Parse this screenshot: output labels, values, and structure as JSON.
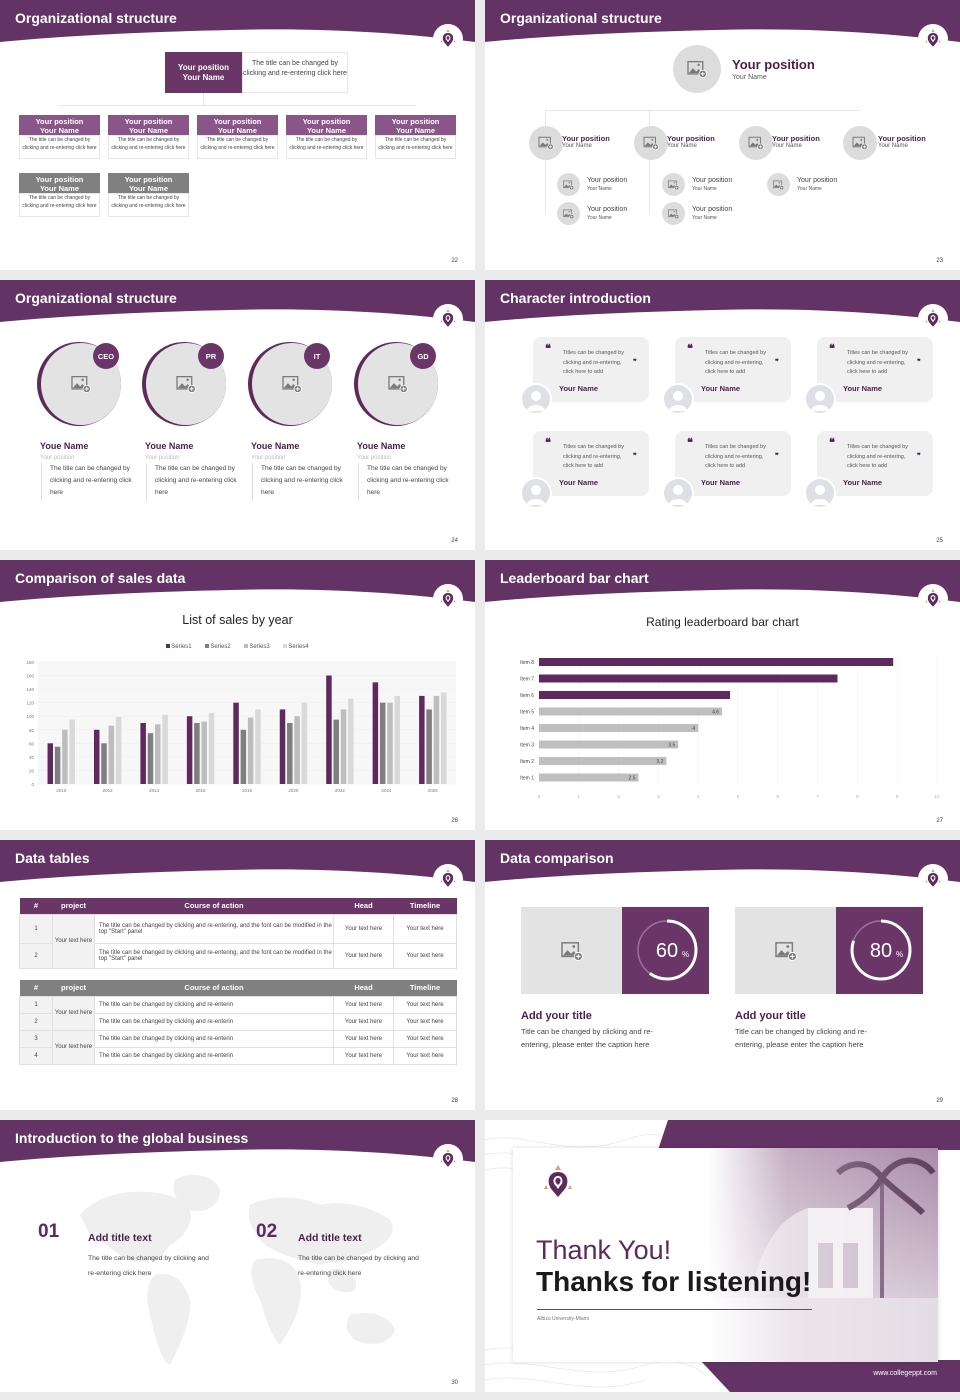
{
  "colors": {
    "brand_purple": "#6a3668",
    "dark_purple": "#4a1f4a",
    "gray": "#808080",
    "light_gray": "#e3e3e3",
    "logo_orange": "#e59a6c"
  },
  "slides": [
    {
      "title": "Organizational structure",
      "page": "22",
      "top": {
        "position": "Your position",
        "name": "Your Name",
        "desc": "The title can be changed by clicking and re-entering click here"
      },
      "cards": [
        {
          "position": "Your position",
          "name": "Your Name",
          "desc": "The title can be changed by clicking and re-entering click here",
          "tone": "purple"
        },
        {
          "position": "Your position",
          "name": "Your Name",
          "desc": "The title can be changed by clicking and re-entering click here",
          "tone": "purple"
        },
        {
          "position": "Your position",
          "name": "Your Name",
          "desc": "The title can be changed by clicking and re-entering click here",
          "tone": "purple"
        },
        {
          "position": "Your position",
          "name": "Your Name",
          "desc": "The title can be changed by clicking and re-entering click here",
          "tone": "purple"
        },
        {
          "position": "Your position",
          "name": "Your Name",
          "desc": "The title can be changed by clicking and re-entering click here",
          "tone": "purple"
        },
        {
          "position": "Your position",
          "name": "Your Name",
          "desc": "The title can be changed by clicking and re-entering click here",
          "tone": "gray"
        },
        {
          "position": "Your position",
          "name": "Your Name",
          "desc": "The title can be changed by clicking and re-entering click here",
          "tone": "gray"
        }
      ]
    },
    {
      "title": "Organizational structure",
      "page": "23",
      "top": {
        "position": "Your position",
        "name": "Your Name"
      },
      "level2": [
        {
          "position": "Your position",
          "name": "Your Name"
        },
        {
          "position": "Your position",
          "name": "Your Name"
        },
        {
          "position": "Your position",
          "name": "Your Name"
        },
        {
          "position": "Your position",
          "name": "Your Name"
        }
      ],
      "level3": [
        {
          "position": "Your position",
          "name": "Your Name"
        },
        {
          "position": "Your position",
          "name": "Your Name"
        },
        {
          "position": "Your position",
          "name": "Your Name"
        },
        {
          "position": "Your position",
          "name": "Your Name"
        },
        {
          "position": "Your position",
          "name": "Your Name"
        }
      ]
    },
    {
      "title": "Organizational structure",
      "page": "24",
      "people": [
        {
          "role": "CEO",
          "name": "Youe Name",
          "position": "Your position",
          "desc": "The title can be changed by clicking and re-entering click here"
        },
        {
          "role": "PR",
          "name": "Youe Name",
          "position": "Your position",
          "desc": "The title can be changed by clicking and re-entering click here"
        },
        {
          "role": "IT",
          "name": "Youe Name",
          "position": "Your position",
          "desc": "The title can be changed by clicking and re-entering click here"
        },
        {
          "role": "GD",
          "name": "Youe Name",
          "position": "Your position",
          "desc": "The title can be changed by clicking and re-entering click here"
        }
      ]
    },
    {
      "title": "Character introduction",
      "page": "25",
      "quotes": [
        {
          "text": "Titles can be changed by clicking and re-entering, click here to add",
          "name": "Your Name"
        },
        {
          "text": "Titles can be changed by clicking and re-entering, click here to add",
          "name": "Your Name"
        },
        {
          "text": "Titles can be changed by clicking and re-entering, click here to add",
          "name": "Your Name"
        },
        {
          "text": "Titles can be changed by clicking and re-entering, click here to add",
          "name": "Your Name"
        },
        {
          "text": "Titles can be changed by clicking and re-entering, click here to add",
          "name": "Your Name"
        },
        {
          "text": "Titles can be changed by clicking and re-entering, click here to add",
          "name": "Your Name"
        }
      ],
      "open_quote": "❝",
      "close_quote": "❞"
    },
    {
      "title": "Comparison of sales data",
      "page": "26"
    },
    {
      "title": "Leaderboard bar chart",
      "page": "27"
    },
    {
      "title": "Data tables",
      "page": "28",
      "table1": {
        "headers": [
          "#",
          "project",
          "Course of action",
          "Head",
          "Timeline"
        ],
        "rows": [
          {
            "num": "1",
            "project": "Your text here",
            "action": "The title can be changed by clicking and re-entering, and the font can be modified in the top \"Start\" panel",
            "head": "Your text here",
            "timeline": "Your text here"
          },
          {
            "num": "2",
            "project": "",
            "action": "The title can be changed by clicking and re-entering, and the font can be modified in the top \"Start\" panel",
            "head": "Your text here",
            "timeline": "Your text here"
          }
        ]
      },
      "table2": {
        "headers": [
          "#",
          "project",
          "Course of action",
          "Head",
          "Timeline"
        ],
        "rows": [
          {
            "num": "1",
            "project": "Your text here",
            "action": "The title can be changed by clicking and re-enterin",
            "head": "Your text here",
            "timeline": "Your text here"
          },
          {
            "num": "2",
            "project": "",
            "action": "The title can be changed by clicking and re-enterin",
            "head": "Your text here",
            "timeline": "Your text here"
          },
          {
            "num": "3",
            "project": "Your text here",
            "action": "The title can be changed by clicking and re-enterin",
            "head": "Your text here",
            "timeline": "Your text here"
          },
          {
            "num": "4",
            "project": "",
            "action": "The title can be changed by clicking and re-enterin",
            "head": "Your text here",
            "timeline": "Your text here"
          }
        ]
      }
    },
    {
      "title": "Data comparison",
      "page": "29",
      "items": [
        {
          "percent": "60",
          "unit": "%",
          "title": "Add your title",
          "desc": "Title can be changed by clicking and re-entering, please enter the caption here"
        },
        {
          "percent": "80",
          "unit": "%",
          "title": "Add your title",
          "desc": "Title can be changed by clicking and re-entering, please enter the caption here"
        }
      ]
    },
    {
      "title": "Introduction to the global business",
      "page": "30",
      "items": [
        {
          "num": "01",
          "title": "Add title text",
          "desc": "The title can be changed by clicking and re-entering click here"
        },
        {
          "num": "02",
          "title": "Add title text",
          "desc": "The title can be changed by clicking and re-entering click here"
        }
      ]
    },
    {
      "line1": "Thank You!",
      "line2": "Thanks for listening!",
      "subtitle": "Albizu University-Miami",
      "url": "www.collegeppt.com"
    }
  ],
  "chart_data": [
    {
      "type": "bar",
      "title": "List of sales by year",
      "categories": [
        "2010",
        "2012",
        "2014",
        "2016",
        "2018",
        "2020",
        "2022",
        "2024",
        "2026"
      ],
      "series": [
        {
          "name": "Series1",
          "color": "#5e2a5e",
          "values": [
            60,
            80,
            90,
            100,
            120,
            110,
            160,
            150,
            130
          ]
        },
        {
          "name": "Series2",
          "color": "#7f7f7f",
          "values": [
            55,
            60,
            75,
            90,
            80,
            90,
            95,
            120,
            110
          ]
        },
        {
          "name": "Series3",
          "color": "#bdbdbd",
          "values": [
            80,
            86,
            88,
            92,
            98,
            100,
            110,
            120,
            130
          ]
        },
        {
          "name": "Series4",
          "color": "#d9d9d9",
          "values": [
            95,
            99,
            102,
            105,
            110,
            120,
            126,
            130,
            135
          ]
        }
      ],
      "ylim": [
        0,
        180
      ],
      "yticks": [
        0,
        20,
        40,
        60,
        80,
        100,
        120,
        140,
        160,
        180
      ],
      "legend_position": "top",
      "grid": true
    },
    {
      "type": "bar",
      "orientation": "horizontal",
      "title": "Rating leaderboard bar chart",
      "categories": [
        "Item 1",
        "Item 2",
        "Item 3",
        "Item 4",
        "Item 5",
        "Item 6",
        "Item 7",
        "Item 8"
      ],
      "values": [
        2.5,
        3.2,
        3.5,
        4,
        4.6,
        4.8,
        7.5,
        8.9
      ],
      "data_labels": [
        "2.5",
        "3.2",
        "3.5",
        "4",
        "4.6",
        "",
        "",
        ""
      ],
      "highlight_color": "#5e2a5e",
      "base_color": "#bfbfbf",
      "xlim": [
        0,
        10
      ],
      "xticks": [
        0,
        1,
        2,
        3,
        4,
        5,
        6,
        7,
        8,
        9,
        10
      ],
      "grid": true
    }
  ]
}
